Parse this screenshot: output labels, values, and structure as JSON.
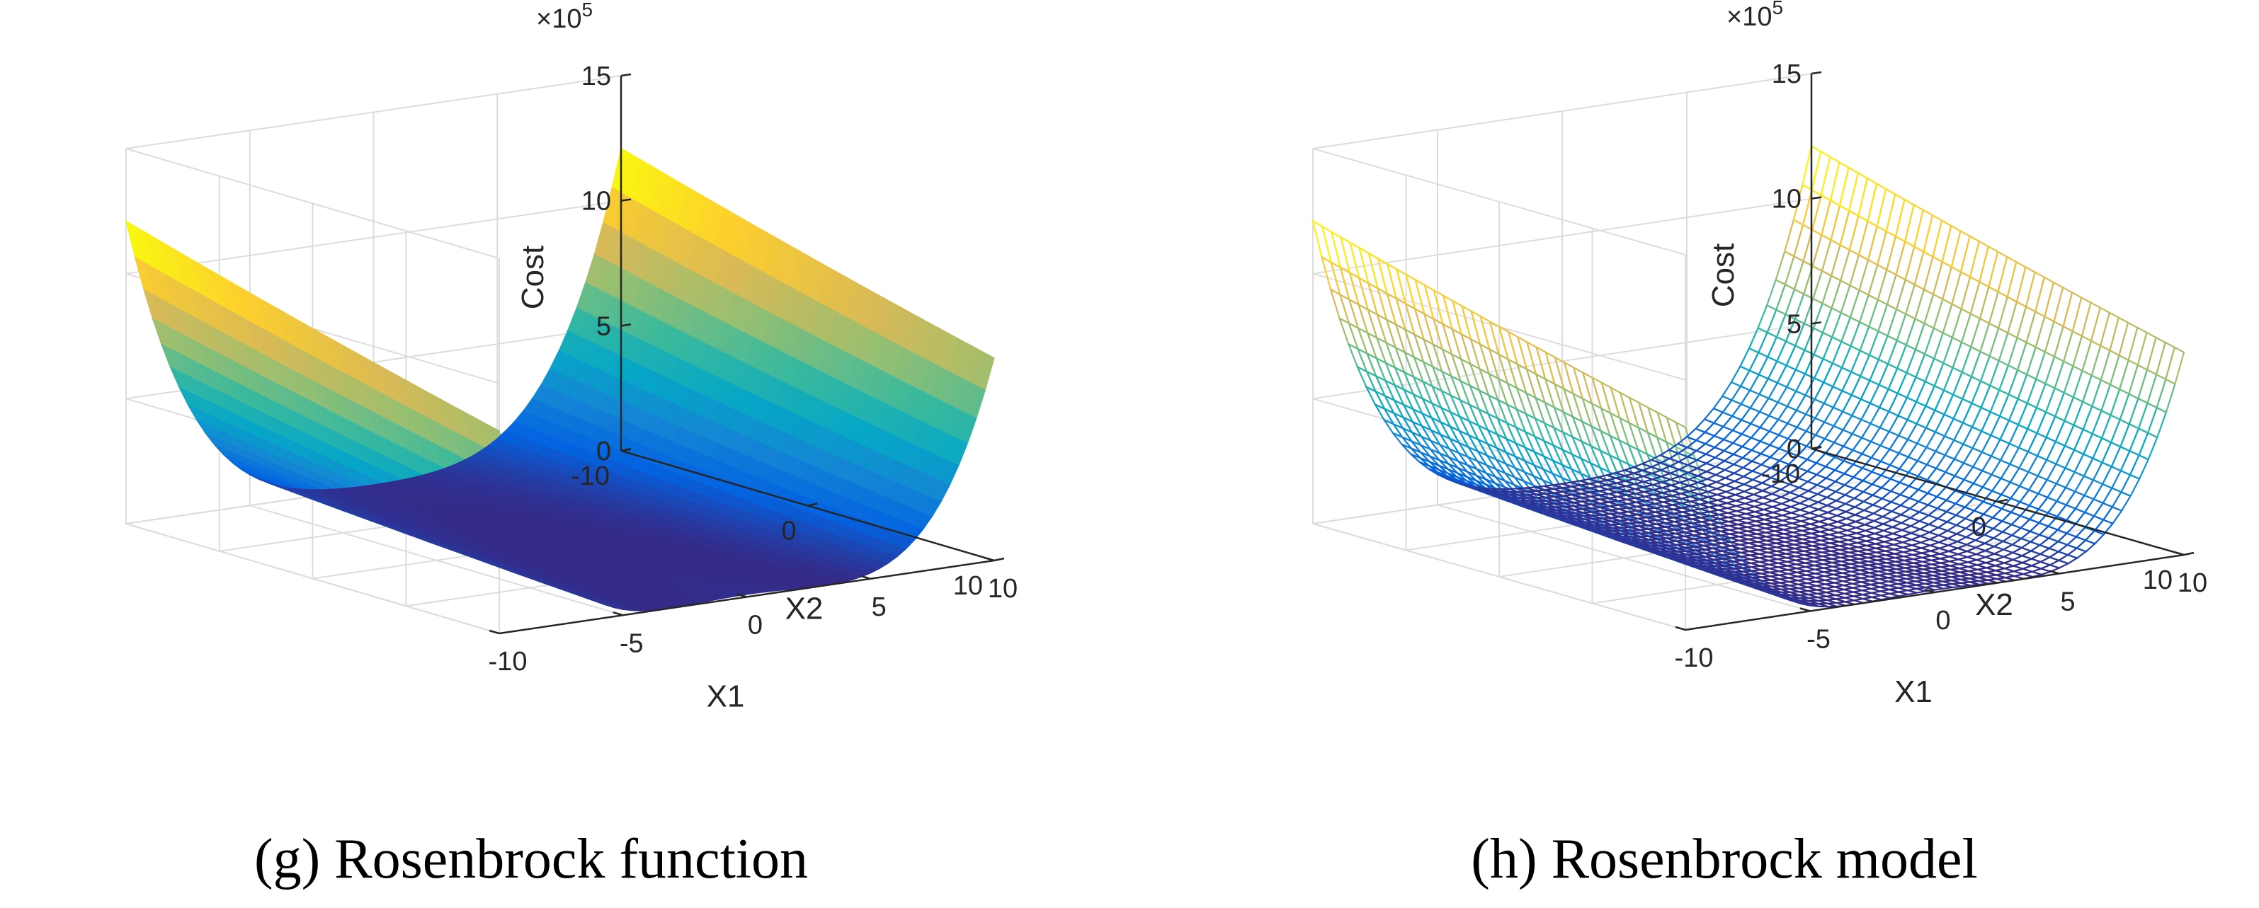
{
  "figures": [
    {
      "caption": "(g) Rosenbrock function",
      "chart_data": {
        "type": "surface",
        "render": "filled",
        "function": "100*(x2 - x1^2)^2 + (1 - x1)^2",
        "x": {
          "label": "X1",
          "lim": [
            -10,
            10
          ],
          "ticks": [
            -10,
            -5,
            0,
            5,
            10
          ]
        },
        "y": {
          "label": "X2",
          "lim": [
            -10,
            10
          ],
          "ticks": [
            -10,
            0,
            10
          ]
        },
        "z": {
          "label": "Cost",
          "lim": [
            0,
            1500000
          ],
          "ticks": [
            0,
            5,
            10,
            15
          ],
          "exponent_label": "×10",
          "exponent": "5"
        },
        "grid": true
      }
    },
    {
      "caption": "(h) Rosenbrock model",
      "chart_data": {
        "type": "surface",
        "render": "mesh",
        "function": "100*(x2 - x1^2)^2 + (1 - x1)^2",
        "x": {
          "label": "X1",
          "lim": [
            -10,
            10
          ],
          "ticks": [
            -10,
            -5,
            0,
            5,
            10
          ]
        },
        "y": {
          "label": "X2",
          "lim": [
            -10,
            10
          ],
          "ticks": [
            -10,
            0,
            10
          ]
        },
        "z": {
          "label": "Cost",
          "lim": [
            0,
            1500000
          ],
          "ticks": [
            0,
            5,
            10,
            15
          ],
          "exponent_label": "×10",
          "exponent": "5"
        },
        "grid": true
      }
    }
  ],
  "colors": {
    "axis": "#262626",
    "grid": "#dcdcdc",
    "parula": [
      "#352a87",
      "#0363e1",
      "#1485d4",
      "#06a7c6",
      "#38b99e",
      "#92bf73",
      "#d9ba56",
      "#fcce2e",
      "#f9fb0e"
    ]
  }
}
